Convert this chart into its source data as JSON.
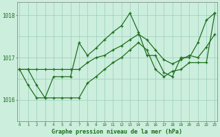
{
  "title": "Graphe pression niveau de la mer (hPa)",
  "xlabel_hours": [
    0,
    1,
    2,
    3,
    4,
    5,
    6,
    7,
    8,
    9,
    10,
    11,
    12,
    13,
    14,
    15,
    16,
    17,
    18,
    19,
    20,
    21,
    22,
    23
  ],
  "ylim": [
    1015.5,
    1018.3
  ],
  "yticks": [
    1016,
    1017,
    1018
  ],
  "background_color": "#cceedd",
  "grid_color": "#99ccbb",
  "line_color": "#1a6e1a",
  "series": [
    [
      1016.72,
      1016.72,
      1016.35,
      1016.05,
      1016.05,
      1016.05,
      1016.05,
      1016.05,
      1016.4,
      1016.55,
      1016.72,
      1016.88,
      1017.0,
      1017.18,
      1017.35,
      1017.18,
      1016.72,
      1016.55,
      1016.68,
      1016.72,
      1016.88,
      1016.88,
      1016.88,
      1018.05
    ],
    [
      1016.72,
      1016.35,
      1016.05,
      1016.05,
      1016.55,
      1016.55,
      1016.55,
      1017.35,
      1017.05,
      1017.22,
      1017.42,
      1017.6,
      1017.75,
      1018.05,
      1017.6,
      1017.05,
      1017.05,
      1016.65,
      1016.55,
      1017.0,
      1017.0,
      1017.35,
      1017.88,
      1018.05
    ],
    [
      1016.72,
      1016.72,
      1016.72,
      1016.72,
      1016.72,
      1016.72,
      1016.72,
      1016.72,
      1016.88,
      1017.0,
      1017.05,
      1017.18,
      1017.28,
      1017.42,
      1017.55,
      1017.42,
      1017.18,
      1016.95,
      1016.85,
      1016.95,
      1017.05,
      1017.0,
      1017.25,
      1017.55
    ]
  ]
}
